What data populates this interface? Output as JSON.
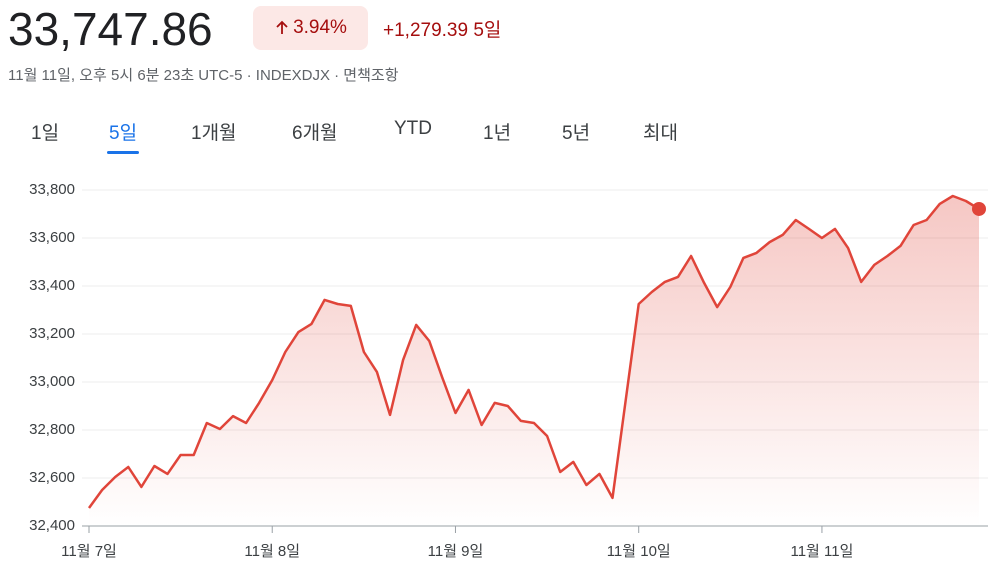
{
  "header": {
    "price": "33,747.86",
    "change_percent": "3.94%",
    "change": "+1,279.39",
    "period": "5일",
    "subtitle": "11월 11일, 오후 5시 6분 23초 UTC-5 · INDEXDJX · 면책조항"
  },
  "tabs": {
    "items": [
      "1일",
      "5일",
      "1개월",
      "6개월",
      "YTD",
      "1년",
      "5년",
      "최대"
    ],
    "selected": 1
  },
  "chart_data": {
    "type": "line",
    "color": "#e0453a",
    "grid": true,
    "categories": [
      "11월 7일",
      null,
      null,
      null,
      null,
      null,
      null,
      null,
      null,
      null,
      null,
      null,
      null,
      null,
      "11월 8일",
      null,
      null,
      null,
      null,
      null,
      null,
      null,
      null,
      null,
      null,
      null,
      null,
      null,
      "11월 9일",
      null,
      null,
      null,
      null,
      null,
      null,
      null,
      null,
      null,
      null,
      null,
      null,
      null,
      "11월 10일",
      null,
      null,
      null,
      null,
      null,
      null,
      null,
      null,
      null,
      null,
      null,
      null,
      null,
      "11월 11일",
      null,
      null,
      null,
      null,
      null,
      null,
      null,
      null,
      null,
      null,
      null,
      null
    ],
    "values": [
      32475,
      32550,
      32604,
      32646,
      32563,
      32650,
      32617,
      32696,
      32696,
      32829,
      32804,
      32858,
      32829,
      32913,
      33008,
      33125,
      33208,
      33242,
      33342,
      33325,
      33317,
      33125,
      33042,
      32863,
      33092,
      33238,
      33171,
      33017,
      32871,
      32967,
      32821,
      32913,
      32900,
      32838,
      32829,
      32775,
      32625,
      32667,
      32571,
      32617,
      32517,
      32921,
      33325,
      33375,
      33417,
      33438,
      33525,
      33413,
      33312,
      33396,
      33517,
      33538,
      33583,
      33613,
      33675,
      33638,
      33600,
      33638,
      33558,
      33417,
      33488,
      33525,
      33567,
      33654,
      33675,
      33742,
      33775,
      33754,
      33721
    ],
    "ylim": [
      32400,
      33850
    ],
    "yticks": [
      {
        "value": 32400,
        "label": "32,400"
      },
      {
        "value": 32600,
        "label": "32,600"
      },
      {
        "value": 32800,
        "label": "32,800"
      },
      {
        "value": 33000,
        "label": "33,000"
      },
      {
        "value": 33200,
        "label": "33,200"
      },
      {
        "value": 33400,
        "label": "33,400"
      },
      {
        "value": 33600,
        "label": "33,600"
      },
      {
        "value": 33800,
        "label": "33,800"
      }
    ]
  }
}
